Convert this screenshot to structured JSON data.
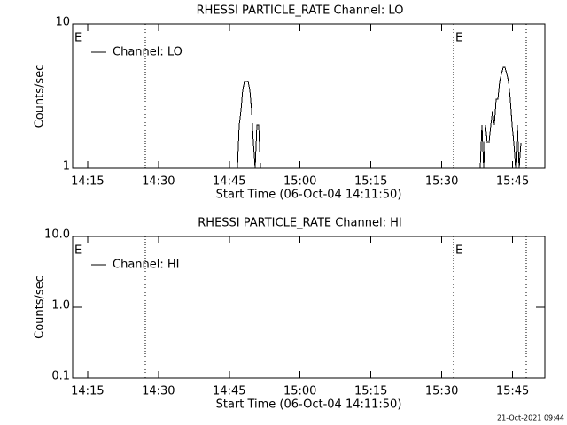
{
  "chart_data": [
    {
      "type": "line",
      "title": "RHESSI PARTICLE_RATE Channel: LO",
      "xlabel": "Start Time (06-Oct-04 14:11:50)",
      "ylabel": "Counts/sec",
      "log_y": true,
      "legend": "upper-left",
      "xlim": [
        0,
        6000
      ],
      "xticks": [
        {
          "value": 190,
          "label": "14:15"
        },
        {
          "value": 1090,
          "label": "14:30"
        },
        {
          "value": 1990,
          "label": "14:45"
        },
        {
          "value": 2890,
          "label": "15:00"
        },
        {
          "value": 3790,
          "label": "15:15"
        },
        {
          "value": 4690,
          "label": "15:30"
        },
        {
          "value": 5590,
          "label": "15:45"
        }
      ],
      "ylim": [
        1,
        10
      ],
      "yticks": [
        1,
        10
      ],
      "vlines": [
        923,
        4841,
        5764
      ],
      "annotations": [
        {
          "text": "E",
          "x": 0
        },
        {
          "text": "E",
          "x": 4841
        }
      ],
      "series": [
        {
          "name": "Channel: LO",
          "color": "#000000",
          "x": [
            2094,
            2116,
            2139,
            2161,
            2184,
            2206,
            2229,
            2251,
            2274,
            2296,
            2319,
            2341,
            2364,
            2386,
            2409,
            5156,
            5178,
            5201,
            5223,
            5246,
            5268,
            5291,
            5313,
            5336,
            5358,
            5381,
            5403,
            5426,
            5448,
            5471,
            5493,
            5516,
            5538,
            5561,
            5583,
            5606,
            5628,
            5651,
            5673,
            5696
          ],
          "values": [
            1,
            2,
            2.5,
            3.5,
            4,
            4,
            4,
            3.5,
            2.5,
            1.5,
            1,
            2,
            2,
            1,
            1,
            null,
            1,
            2,
            1,
            2,
            1.5,
            1.5,
            2,
            2.5,
            2,
            3,
            3,
            4,
            4.5,
            5,
            5,
            4.5,
            4,
            3,
            2,
            1.5,
            1,
            2,
            1,
            1.5
          ]
        }
      ]
    },
    {
      "type": "line",
      "title": "RHESSI PARTICLE_RATE Channel: HI",
      "xlabel": "Start Time (06-Oct-04 14:11:50)",
      "ylabel": "Counts/sec",
      "log_y": true,
      "legend": "upper-left",
      "xlim": [
        0,
        6000
      ],
      "xticks": [
        {
          "value": 190,
          "label": "14:15"
        },
        {
          "value": 1090,
          "label": "14:30"
        },
        {
          "value": 1990,
          "label": "14:45"
        },
        {
          "value": 2890,
          "label": "15:00"
        },
        {
          "value": 3790,
          "label": "15:15"
        },
        {
          "value": 4690,
          "label": "15:30"
        },
        {
          "value": 5590,
          "label": "15:45"
        }
      ],
      "ylim": [
        0.1,
        10
      ],
      "yticks": [
        0.1,
        {
          "value": 1,
          "label": "1.0"
        },
        {
          "value": 10,
          "label": "10.0"
        }
      ],
      "vlines": [
        923,
        4841,
        5764
      ],
      "annotations": [
        {
          "text": "E",
          "x": 0
        },
        {
          "text": "E",
          "x": 4841
        }
      ],
      "series": [
        {
          "name": "Channel: HI",
          "color": "#000000",
          "x": [],
          "values": []
        }
      ]
    }
  ],
  "footer": "21-Oct-2021 09:44"
}
